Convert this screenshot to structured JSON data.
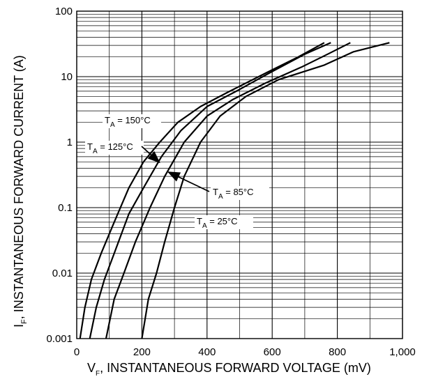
{
  "chart_data": {
    "type": "line",
    "x_scale": "linear",
    "y_scale": "log",
    "xlim": [
      0,
      1000
    ],
    "ylim": [
      0.001,
      100
    ],
    "x_ticks": [
      "0",
      "200",
      "400",
      "600",
      "800",
      "1,000"
    ],
    "y_ticks": [
      "0.001",
      "0.01",
      "0.1",
      "1",
      "10",
      "100"
    ],
    "xlabel": {
      "main": "V",
      "sub": "F",
      "rest": ", INSTANTANEOUS FORWARD VOLTAGE (mV)"
    },
    "ylabel": {
      "main": "I",
      "sub": "F",
      "rest": ", INSTANTANEOUS FORWARD CURRENT (A)"
    },
    "grid": true,
    "series": [
      {
        "name": {
          "pre": "T",
          "sub": "A",
          "post": " = 150°C"
        },
        "points": [
          [
            10,
            0.001
          ],
          [
            25,
            0.003
          ],
          [
            45,
            0.008
          ],
          [
            75,
            0.02
          ],
          [
            115,
            0.06
          ],
          [
            160,
            0.2
          ],
          [
            205,
            0.5
          ],
          [
            255,
            1.0
          ],
          [
            310,
            2.0
          ],
          [
            380,
            3.5
          ],
          [
            470,
            6.0
          ],
          [
            590,
            12
          ],
          [
            680,
            20
          ],
          [
            760,
            33
          ]
        ]
      },
      {
        "name": {
          "pre": "T",
          "sub": "A",
          "post": " = 125°C"
        },
        "points": [
          [
            40,
            0.001
          ],
          [
            60,
            0.003
          ],
          [
            85,
            0.008
          ],
          [
            115,
            0.02
          ],
          [
            160,
            0.08
          ],
          [
            205,
            0.2
          ],
          [
            260,
            0.6
          ],
          [
            320,
            1.5
          ],
          [
            400,
            3.5
          ],
          [
            490,
            6.0
          ],
          [
            600,
            12
          ],
          [
            700,
            22
          ],
          [
            780,
            33
          ]
        ]
      },
      {
        "name": {
          "pre": "T",
          "sub": "A",
          "post": " = 85°C"
        },
        "points": [
          [
            90,
            0.001
          ],
          [
            115,
            0.004
          ],
          [
            145,
            0.01
          ],
          [
            180,
            0.03
          ],
          [
            225,
            0.1
          ],
          [
            270,
            0.3
          ],
          [
            330,
            1.0
          ],
          [
            400,
            2.5
          ],
          [
            480,
            4.5
          ],
          [
            580,
            8.0
          ],
          [
            690,
            14
          ],
          [
            770,
            22
          ],
          [
            840,
            33
          ]
        ]
      },
      {
        "name": {
          "pre": "T",
          "sub": "A",
          "post": " = 25°C"
        },
        "points": [
          [
            200,
            0.001
          ],
          [
            220,
            0.004
          ],
          [
            245,
            0.01
          ],
          [
            270,
            0.03
          ],
          [
            300,
            0.1
          ],
          [
            330,
            0.3
          ],
          [
            380,
            1.0
          ],
          [
            440,
            2.5
          ],
          [
            520,
            5.0
          ],
          [
            620,
            9.0
          ],
          [
            760,
            15
          ],
          [
            850,
            24
          ],
          [
            960,
            33
          ]
        ]
      }
    ],
    "annotations": [
      {
        "series_index": 0,
        "style": "label"
      },
      {
        "series_index": 1,
        "style": "arrow"
      },
      {
        "series_index": 2,
        "style": "arrow"
      },
      {
        "series_index": 3,
        "style": "label"
      }
    ]
  }
}
